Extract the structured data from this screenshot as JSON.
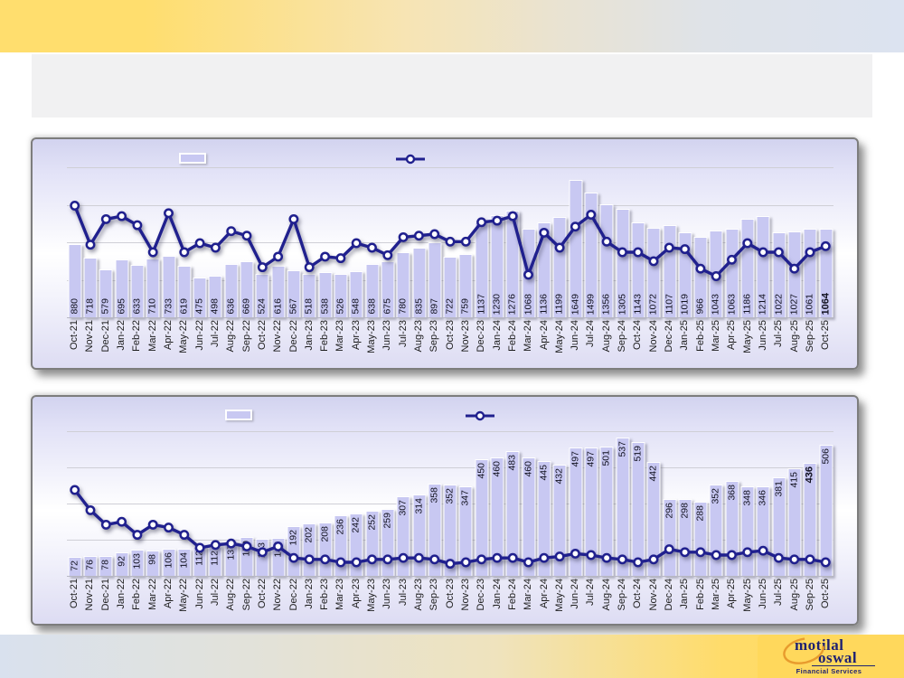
{
  "slide": {
    "title_placeholder_text": "",
    "header_band": {
      "left_color": "#FFDE6E",
      "right_color": "#DCE3F0"
    },
    "footer_band": {
      "left_color": "#D9E1EE",
      "right_color": "#FFD85C"
    }
  },
  "logo": {
    "word1": "motilal",
    "word2": "oswal",
    "tagline": "Financial Services",
    "text_color": "#1E2172",
    "ring_color": "#E89B2D",
    "badge_color": "#FFD85C"
  },
  "chart_data": [
    {
      "type": "combo_bar_line",
      "title": "",
      "legend_position": "top",
      "legend_labels_visible": false,
      "gridlines": "horizontal",
      "ylim": [
        0,
        1800
      ],
      "bold_value_indices": [
        48
      ],
      "colors": {
        "bar": "#C8C8F2",
        "line": "#20208E",
        "marker_fill": "#FFFFFF"
      },
      "categories": [
        "Oct-21",
        "Nov-21",
        "Dec-21",
        "Jan-22",
        "Feb-22",
        "Mar-22",
        "Apr-22",
        "May-22",
        "Jun-22",
        "Jul-22",
        "Aug-22",
        "Sep-22",
        "Oct-22",
        "Nov-22",
        "Dec-22",
        "Jan-23",
        "Feb-23",
        "Mar-23",
        "Apr-23",
        "May-23",
        "Jun-23",
        "Jul-23",
        "Aug-23",
        "Sep-23",
        "Oct-23",
        "Nov-23",
        "Dec-23",
        "Jan-24",
        "Feb-24",
        "Mar-24",
        "Apr-24",
        "May-24",
        "Jun-24",
        "Jul-24",
        "Aug-24",
        "Sep-24",
        "Oct-24",
        "Nov-24",
        "Dec-24",
        "Jan-25",
        "Feb-25",
        "Mar-25",
        "Apr-25",
        "May-25",
        "Jun-25",
        "Jul-25",
        "Aug-25",
        "Sep-25",
        "Oct-25"
      ],
      "series": [
        {
          "name": "bars",
          "type": "bar",
          "values": [
            880,
            718,
            579,
            695,
            633,
            710,
            733,
            619,
            475,
            498,
            636,
            669,
            524,
            616,
            567,
            518,
            538,
            526,
            548,
            638,
            675,
            780,
            835,
            897,
            722,
            759,
            1137,
            1230,
            1276,
            1068,
            1136,
            1199,
            1649,
            1499,
            1356,
            1305,
            1143,
            1072,
            1107,
            1019,
            966,
            1043,
            1063,
            1186,
            1214,
            1022,
            1027,
            1061,
            1064
          ]
        },
        {
          "name": "line",
          "type": "line",
          "axis": "secondary-unlabeled",
          "values_pct_of_plot_height": [
            75,
            49,
            66,
            68,
            62,
            44,
            70,
            44,
            50,
            47,
            58,
            55,
            34,
            41,
            66,
            34,
            41,
            40,
            50,
            47,
            42,
            54,
            55,
            56,
            51,
            51,
            64,
            65,
            68,
            29,
            57,
            47,
            61,
            69,
            51,
            44,
            44,
            38,
            47,
            46,
            33,
            28,
            39,
            50,
            44,
            44,
            33,
            44,
            48
          ]
        }
      ]
    },
    {
      "type": "combo_bar_line",
      "title": "",
      "legend_position": "top",
      "legend_labels_visible": false,
      "gridlines": "horizontal",
      "ylim": [
        0,
        560
      ],
      "bold_value_indices": [
        47
      ],
      "colors": {
        "bar": "#C8C8F2",
        "line": "#20208E",
        "marker_fill": "#FFFFFF"
      },
      "categories": [
        "Oct-21",
        "Nov-21",
        "Dec-21",
        "Jan-22",
        "Feb-22",
        "Mar-22",
        "Apr-22",
        "May-22",
        "Jun-22",
        "Jul-22",
        "Aug-22",
        "Sep-22",
        "Oct-22",
        "Nov-22",
        "Dec-22",
        "Jan-23",
        "Feb-23",
        "Mar-23",
        "Apr-23",
        "May-23",
        "Jun-23",
        "Jul-23",
        "Aug-23",
        "Sep-23",
        "Oct-23",
        "Nov-23",
        "Dec-23",
        "Jan-24",
        "Feb-24",
        "Mar-24",
        "Apr-24",
        "May-24",
        "Jun-24",
        "Jul-24",
        "Aug-24",
        "Sep-24",
        "Oct-24",
        "Nov-24",
        "Dec-24",
        "Jan-25",
        "Feb-25",
        "Mar-25",
        "Apr-25",
        "May-25",
        "Jun-25",
        "Jul-25",
        "Aug-25",
        "Sep-25",
        "Oct-25"
      ],
      "series": [
        {
          "name": "bars",
          "type": "bar",
          "values": [
            72,
            76,
            78,
            92,
            103,
            98,
            106,
            104,
            112,
            112,
            137,
            150,
            143,
            148,
            192,
            202,
            208,
            236,
            242,
            252,
            259,
            307,
            314,
            358,
            352,
            347,
            450,
            460,
            483,
            460,
            445,
            432,
            497,
            497,
            501,
            537,
            519,
            442,
            296,
            298,
            288,
            352,
            368,
            348,
            346,
            381,
            415,
            436,
            506
          ]
        },
        {
          "name": "line",
          "type": "line",
          "axis": "secondary-unlabeled",
          "values_pct_of_plot_height": [
            60,
            46,
            36,
            38,
            29,
            36,
            34,
            29,
            20,
            22,
            23,
            21,
            17,
            21,
            13,
            12,
            12,
            10,
            10,
            12,
            12,
            13,
            13,
            12,
            9,
            10,
            12,
            13,
            13,
            10,
            13,
            14,
            16,
            15,
            13,
            12,
            10,
            12,
            19,
            17,
            17,
            15,
            15,
            17,
            18,
            13,
            12,
            12,
            10
          ]
        }
      ]
    }
  ]
}
